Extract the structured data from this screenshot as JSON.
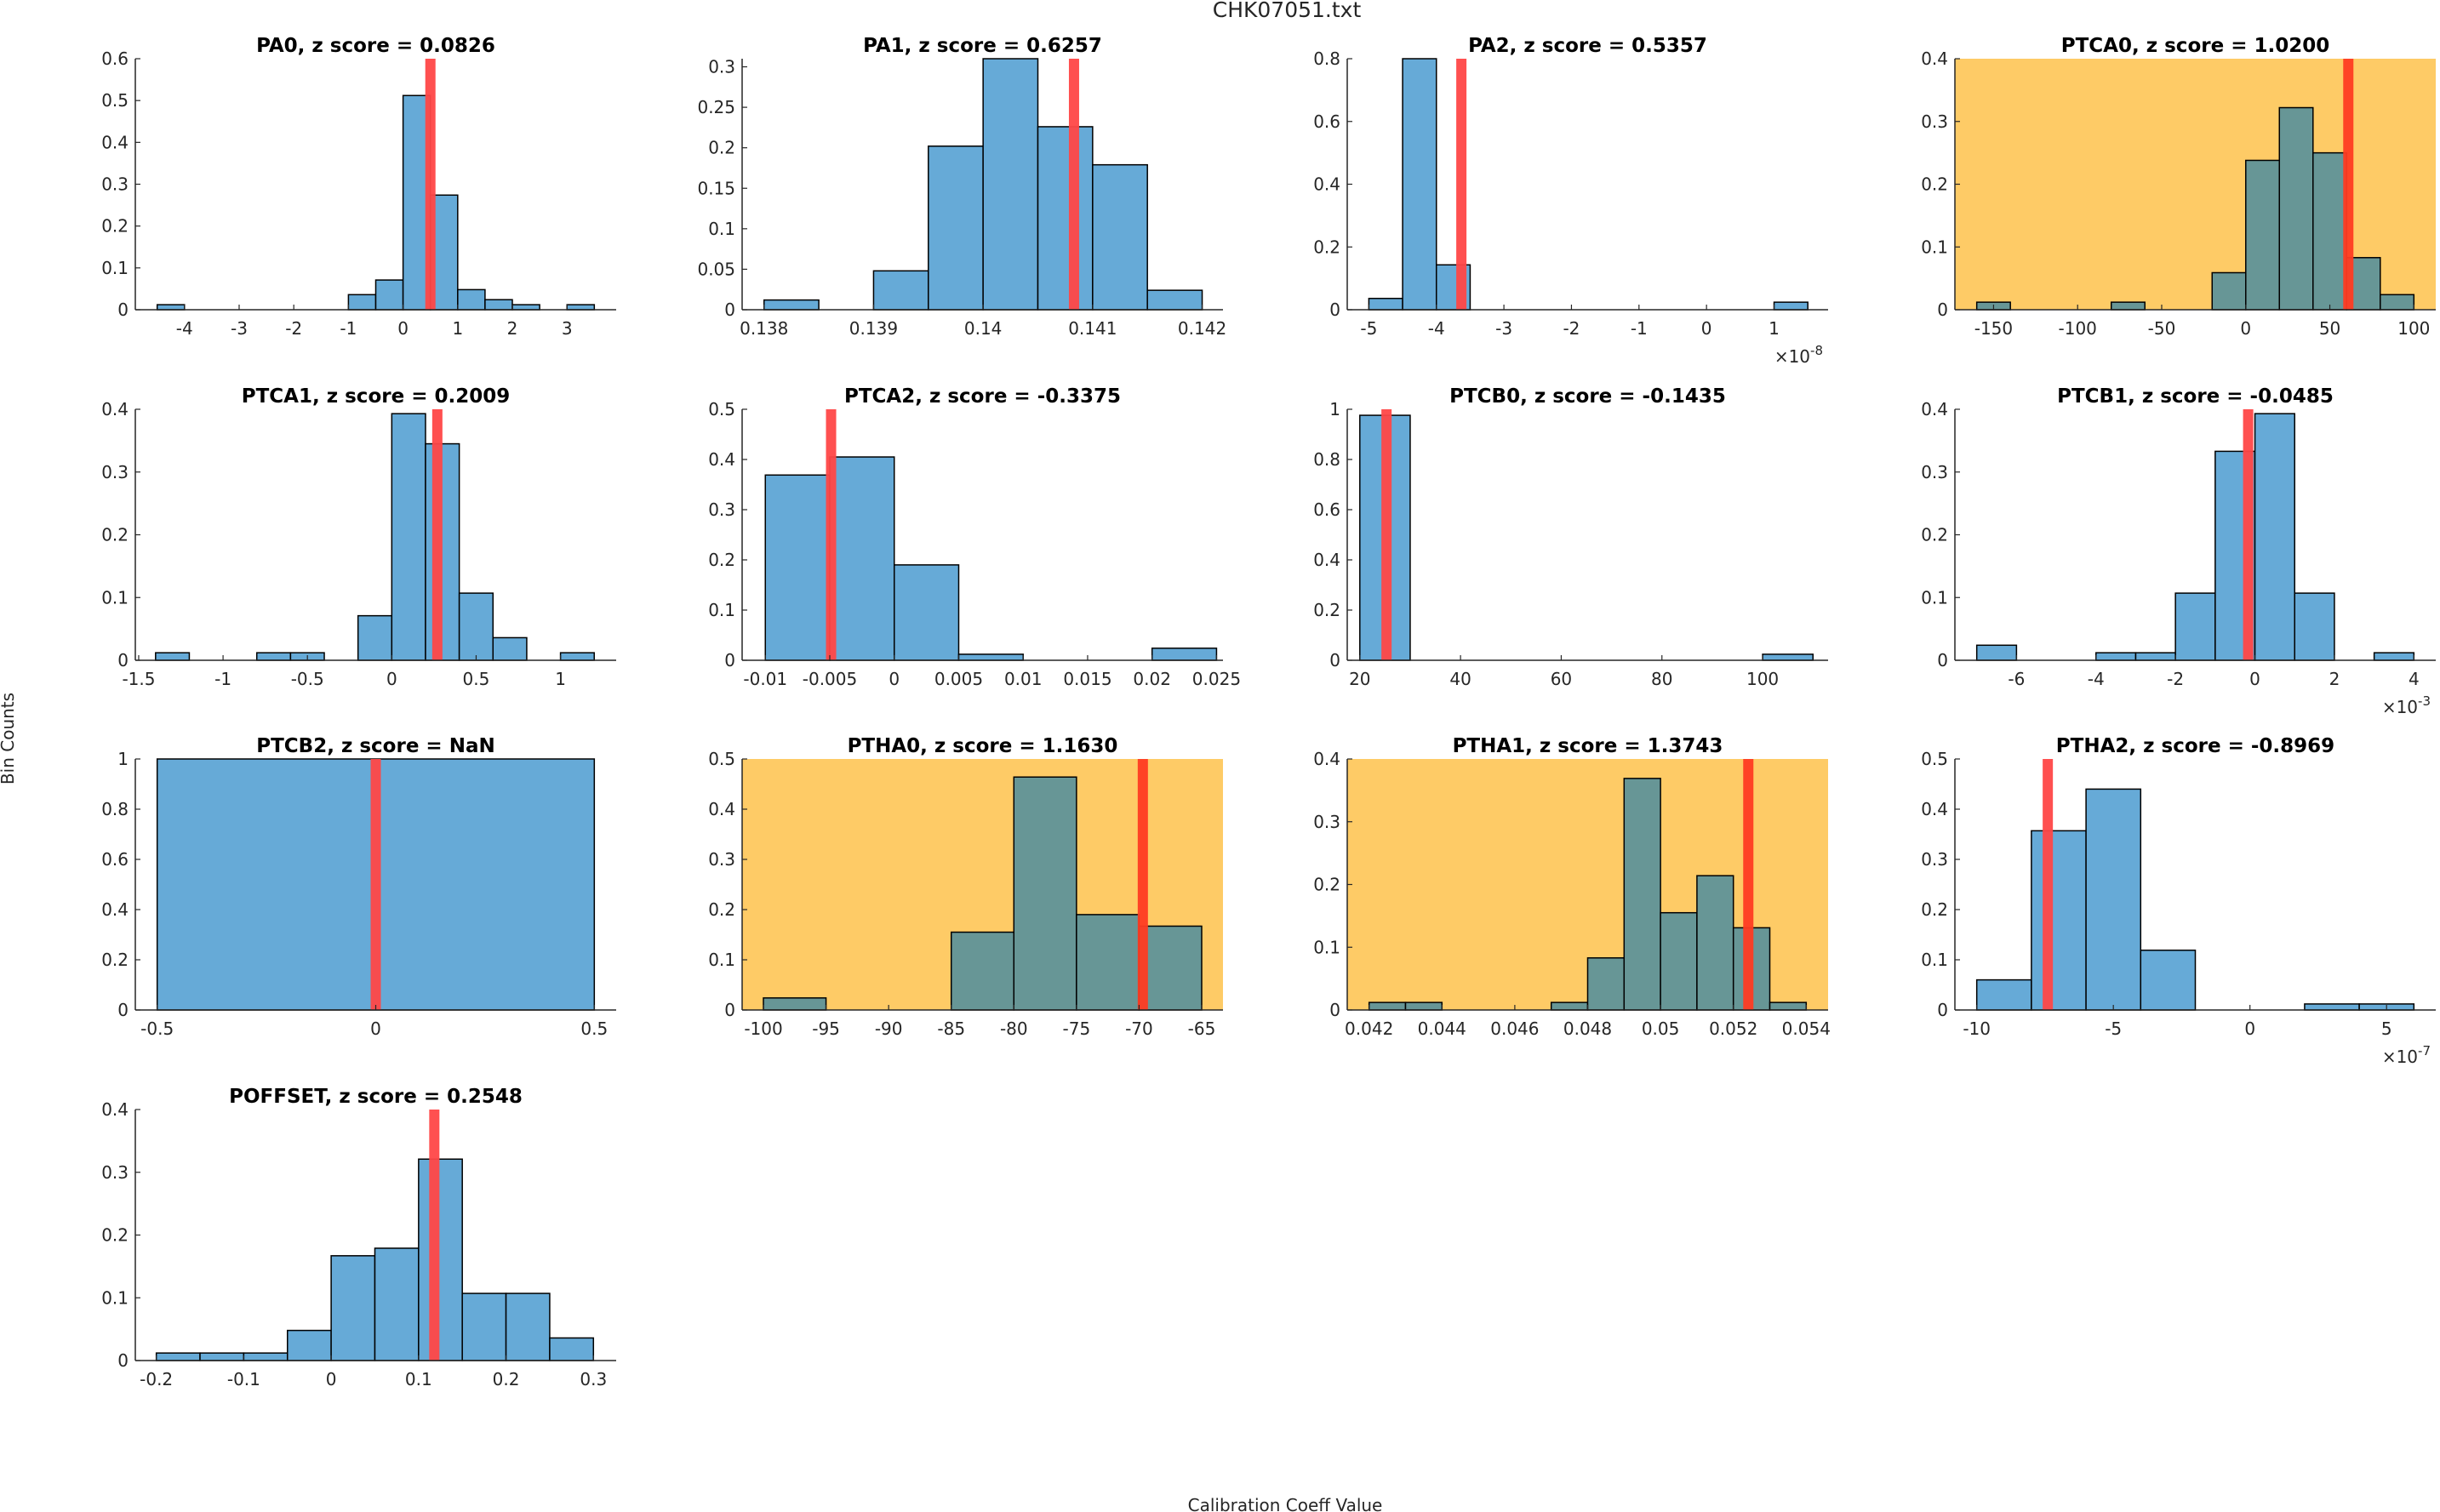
{
  "figure": {
    "title": "CHK07051.txt",
    "xlabel": "Calibration Coeff Value",
    "ylabel": "Bin Counts"
  },
  "colors": {
    "bar": "#66AAD7",
    "bar_on_highlight": "#679696",
    "highlight_bg": "#FECB66",
    "marker_line": "#FF4747",
    "marker_line_on_highlight": "#FF3B22",
    "axis": "#262626"
  },
  "chart_data": [
    {
      "type": "bar",
      "name": "PA0",
      "title": "PA0, z score = 0.0826",
      "z_score": "0.0826",
      "highlight": false,
      "bin_edges": [
        -4.5,
        -4,
        -3.5,
        -3,
        -2.5,
        -2,
        -1.5,
        -1,
        -0.5,
        0,
        0.5,
        1,
        1.5,
        2,
        2.5,
        3,
        3.5
      ],
      "values": [
        0.012,
        0,
        0,
        0,
        0,
        0,
        0,
        0.036,
        0.071,
        0.512,
        0.274,
        0.048,
        0.024,
        0.012,
        0,
        0.012
      ],
      "marker_x": 0.5,
      "xlim": [
        -4.9,
        3.9
      ],
      "ylim": [
        0,
        0.6
      ],
      "xticks": [
        -4,
        -3,
        -2,
        -1,
        0,
        1,
        2,
        3
      ],
      "xtick_labels": [
        "-4",
        "-3",
        "-2",
        "-1",
        "0",
        "1",
        "2",
        "3"
      ],
      "yticks": [
        0,
        0.1,
        0.2,
        0.3,
        0.4,
        0.5,
        0.6
      ],
      "ytick_labels": [
        "0",
        "0.1",
        "0.2",
        "0.3",
        "0.4",
        "0.5",
        "0.6"
      ],
      "x_exponent": ""
    },
    {
      "type": "bar",
      "name": "PA1",
      "title": "PA1, z score = 0.6257",
      "z_score": "0.6257",
      "highlight": false,
      "bin_edges": [
        0.138,
        0.1385,
        0.139,
        0.1395,
        0.14,
        0.1405,
        0.141,
        0.1415,
        0.142
      ],
      "values": [
        0.012,
        0,
        0.048,
        0.202,
        0.31,
        0.226,
        0.179,
        0.024
      ],
      "marker_x": 0.14083,
      "xlim": [
        0.1378,
        0.14219
      ],
      "ylim": [
        0,
        0.31
      ],
      "xticks": [
        0.138,
        0.139,
        0.14,
        0.141,
        0.142
      ],
      "xtick_labels": [
        "0.138",
        "0.139",
        "0.14",
        "0.141",
        "0.142"
      ],
      "yticks": [
        0,
        0.05,
        0.1,
        0.15,
        0.2,
        0.25,
        0.3
      ],
      "ytick_labels": [
        "0",
        "0.05",
        "0.1",
        "0.15",
        "0.2",
        "0.25",
        "0.3"
      ],
      "x_exponent": ""
    },
    {
      "type": "bar",
      "name": "PA2",
      "title": "PA2, z score = 0.5357",
      "z_score": "0.5357",
      "highlight": false,
      "bin_edges": [
        -5,
        -4.5,
        -4,
        -3.5,
        -3,
        -2.5,
        -2,
        -1.5,
        -1,
        -0.5,
        0,
        0.5,
        1,
        1.5
      ],
      "values": [
        0.036,
        0.8,
        0.143,
        0,
        0,
        0,
        0,
        0,
        0,
        0,
        0,
        0,
        0.024
      ],
      "marker_x": -3.63,
      "xlim": [
        -5.32,
        1.8
      ],
      "ylim": [
        0,
        0.8
      ],
      "xticks": [
        -5,
        -4,
        -3,
        -2,
        -1,
        0,
        1
      ],
      "xtick_labels": [
        "-5",
        "-4",
        "-3",
        "-2",
        "-1",
        "0",
        "1"
      ],
      "yticks": [
        0,
        0.2,
        0.4,
        0.6,
        0.8
      ],
      "ytick_labels": [
        "0",
        "0.2",
        "0.4",
        "0.6",
        "0.8"
      ],
      "x_exponent": "-8"
    },
    {
      "type": "bar",
      "name": "PTCA0",
      "title": "PTCA0, z score = 1.0200",
      "z_score": "1.0200",
      "highlight": true,
      "bin_edges": [
        -160,
        -140,
        -120,
        -100,
        -80,
        -60,
        -40,
        -20,
        0,
        20,
        40,
        60,
        80,
        100
      ],
      "values": [
        0.012,
        0,
        0,
        0,
        0.012,
        0,
        0,
        0.059,
        0.238,
        0.322,
        0.25,
        0.083,
        0.024
      ],
      "marker_x": 61,
      "xlim": [
        -173,
        113
      ],
      "ylim": [
        0,
        0.4
      ],
      "xticks": [
        -150,
        -100,
        -50,
        0,
        50,
        100
      ],
      "xtick_labels": [
        "-150",
        "-100",
        "-50",
        "0",
        "50",
        "100"
      ],
      "yticks": [
        0,
        0.1,
        0.2,
        0.3,
        0.4
      ],
      "ytick_labels": [
        "0",
        "0.1",
        "0.2",
        "0.3",
        "0.4"
      ],
      "x_exponent": ""
    },
    {
      "type": "bar",
      "name": "PTCA1",
      "title": "PTCA1, z score = 0.2009",
      "z_score": "0.2009",
      "highlight": false,
      "bin_edges": [
        -1.4,
        -1.2,
        -1,
        -0.8,
        -0.6,
        -0.4,
        -0.2,
        0,
        0.2,
        0.4,
        0.6,
        0.8,
        1,
        1.2
      ],
      "values": [
        0.012,
        0,
        0,
        0.012,
        0.012,
        0,
        0.071,
        0.393,
        0.345,
        0.107,
        0.036,
        0,
        0.012
      ],
      "marker_x": 0.27,
      "xlim": [
        -1.52,
        1.33
      ],
      "ylim": [
        0,
        0.4
      ],
      "xticks": [
        -1.5,
        -1,
        -0.5,
        0,
        0.5,
        1
      ],
      "xtick_labels": [
        "-1.5",
        "-1",
        "-0.5",
        "0",
        "0.5",
        "1"
      ],
      "yticks": [
        0,
        0.1,
        0.2,
        0.3,
        0.4
      ],
      "ytick_labels": [
        "0",
        "0.1",
        "0.2",
        "0.3",
        "0.4"
      ],
      "x_exponent": ""
    },
    {
      "type": "bar",
      "name": "PTCA2",
      "title": "PTCA2, z score = -0.3375",
      "z_score": "-0.3375",
      "highlight": false,
      "bin_edges": [
        -0.01,
        -0.005,
        0,
        0.005,
        0.01,
        0.015,
        0.02,
        0.025
      ],
      "values": [
        0.369,
        0.405,
        0.19,
        0.012,
        0,
        0,
        0.024
      ],
      "marker_x": -0.0049,
      "xlim": [
        -0.0118,
        0.0255
      ],
      "ylim": [
        0,
        0.5
      ],
      "xticks": [
        -0.01,
        -0.005,
        0,
        0.005,
        0.01,
        0.015,
        0.02,
        0.025
      ],
      "xtick_labels": [
        "-0.01",
        "-0.005",
        "0",
        "0.005",
        "0.01",
        "0.015",
        "0.02",
        "0.025"
      ],
      "yticks": [
        0,
        0.1,
        0.2,
        0.3,
        0.4,
        0.5
      ],
      "ytick_labels": [
        "0",
        "0.1",
        "0.2",
        "0.3",
        "0.4",
        "0.5"
      ],
      "x_exponent": ""
    },
    {
      "type": "bar",
      "name": "PTCB0",
      "title": "PTCB0, z score = -0.1435",
      "z_score": "-0.1435",
      "highlight": false,
      "bin_edges": [
        20,
        30,
        40,
        50,
        60,
        70,
        80,
        90,
        100,
        110
      ],
      "values": [
        0.976,
        0,
        0,
        0,
        0,
        0,
        0,
        0,
        0.024
      ],
      "marker_x": 25.3,
      "xlim": [
        17.5,
        113
      ],
      "ylim": [
        0,
        1
      ],
      "xticks": [
        20,
        40,
        60,
        80,
        100
      ],
      "xtick_labels": [
        "20",
        "40",
        "60",
        "80",
        "100"
      ],
      "yticks": [
        0,
        0.2,
        0.4,
        0.6,
        0.8,
        1
      ],
      "ytick_labels": [
        "0",
        "0.2",
        "0.4",
        "0.6",
        "0.8",
        "1"
      ],
      "x_exponent": ""
    },
    {
      "type": "bar",
      "name": "PTCB1",
      "title": "PTCB1, z score = -0.0485",
      "z_score": "-0.0485",
      "highlight": false,
      "bin_edges": [
        -7,
        -6,
        -5,
        -4,
        -3,
        -2,
        -1,
        0,
        1,
        2,
        3,
        4
      ],
      "values": [
        0.024,
        0,
        0,
        0.012,
        0.012,
        0.107,
        0.333,
        0.393,
        0.107,
        0,
        0.012
      ],
      "marker_x": -0.17,
      "xlim": [
        -7.55,
        4.55
      ],
      "ylim": [
        0,
        0.4
      ],
      "xticks": [
        -6,
        -4,
        -2,
        0,
        2,
        4
      ],
      "xtick_labels": [
        "-6",
        "-4",
        "-2",
        "0",
        "2",
        "4"
      ],
      "yticks": [
        0,
        0.1,
        0.2,
        0.3,
        0.4
      ],
      "ytick_labels": [
        "0",
        "0.1",
        "0.2",
        "0.3",
        "0.4"
      ],
      "x_exponent": "-3"
    },
    {
      "type": "bar",
      "name": "PTCB2",
      "title": "PTCB2, z score = NaN",
      "z_score": "NaN",
      "highlight": false,
      "bin_edges": [
        -0.5,
        0.5
      ],
      "values": [
        1
      ],
      "marker_x": 0,
      "xlim": [
        -0.55,
        0.55
      ],
      "ylim": [
        0,
        1
      ],
      "xticks": [
        -0.5,
        0,
        0.5
      ],
      "xtick_labels": [
        "-0.5",
        "0",
        "0.5"
      ],
      "yticks": [
        0,
        0.2,
        0.4,
        0.6,
        0.8,
        1
      ],
      "ytick_labels": [
        "0",
        "0.2",
        "0.4",
        "0.6",
        "0.8",
        "1"
      ],
      "x_exponent": ""
    },
    {
      "type": "bar",
      "name": "PTHA0",
      "title": "PTHA0, z score = 1.1630",
      "z_score": "1.1630",
      "highlight": true,
      "bin_edges": [
        -100,
        -95,
        -90,
        -85,
        -80,
        -75,
        -70,
        -65
      ],
      "values": [
        0.024,
        0,
        0,
        0.155,
        0.464,
        0.19,
        0.167
      ],
      "marker_x": -69.7,
      "xlim": [
        -101.7,
        -63.3
      ],
      "ylim": [
        0,
        0.5
      ],
      "xticks": [
        -100,
        -95,
        -90,
        -85,
        -80,
        -75,
        -70,
        -65
      ],
      "xtick_labels": [
        "-100",
        "-95",
        "-90",
        "-85",
        "-80",
        "-75",
        "-70",
        "-65"
      ],
      "yticks": [
        0,
        0.1,
        0.2,
        0.3,
        0.4,
        0.5
      ],
      "ytick_labels": [
        "0",
        "0.1",
        "0.2",
        "0.3",
        "0.4",
        "0.5"
      ],
      "x_exponent": ""
    },
    {
      "type": "bar",
      "name": "PTHA1",
      "title": "PTHA1, z score = 1.3743",
      "z_score": "1.3743",
      "highlight": true,
      "bin_edges": [
        0.042,
        0.043,
        0.044,
        0.045,
        0.046,
        0.047,
        0.048,
        0.049,
        0.05,
        0.051,
        0.052,
        0.053,
        0.054
      ],
      "values": [
        0.012,
        0.012,
        0,
        0,
        0,
        0.012,
        0.083,
        0.369,
        0.155,
        0.214,
        0.131,
        0.012
      ],
      "marker_x": 0.05241,
      "xlim": [
        0.0414,
        0.0546
      ],
      "ylim": [
        0,
        0.4
      ],
      "xticks": [
        0.042,
        0.044,
        0.046,
        0.048,
        0.05,
        0.052,
        0.054
      ],
      "xtick_labels": [
        "0.042",
        "0.044",
        "0.046",
        "0.048",
        "0.05",
        "0.052",
        "0.054"
      ],
      "yticks": [
        0,
        0.1,
        0.2,
        0.3,
        0.4
      ],
      "ytick_labels": [
        "0",
        "0.1",
        "0.2",
        "0.3",
        "0.4"
      ],
      "x_exponent": ""
    },
    {
      "type": "bar",
      "name": "PTHA2",
      "title": "PTHA2, z score = -0.8969",
      "z_score": "-0.8969",
      "highlight": false,
      "bin_edges": [
        -10,
        -8,
        -6,
        -4,
        -2,
        0,
        2,
        4,
        6
      ],
      "values": [
        0.06,
        0.357,
        0.44,
        0.119,
        0,
        0,
        0.012,
        0.012
      ],
      "marker_x": -7.4,
      "xlim": [
        -10.8,
        6.8
      ],
      "ylim": [
        0,
        0.5
      ],
      "xticks": [
        -10,
        -5,
        0,
        5
      ],
      "xtick_labels": [
        "-10",
        "-5",
        "0",
        "5"
      ],
      "yticks": [
        0,
        0.1,
        0.2,
        0.3,
        0.4,
        0.5
      ],
      "ytick_labels": [
        "0",
        "0.1",
        "0.2",
        "0.3",
        "0.4",
        "0.5"
      ],
      "x_exponent": "-7"
    },
    {
      "type": "bar",
      "name": "POFFSET",
      "title": "POFFSET, z score = 0.2548",
      "z_score": "0.2548",
      "highlight": false,
      "bin_edges": [
        -0.2,
        -0.15,
        -0.1,
        -0.05,
        0,
        0.05,
        0.1,
        0.15,
        0.2,
        0.25,
        0.3
      ],
      "values": [
        0.012,
        0.012,
        0.012,
        0.048,
        0.167,
        0.179,
        0.321,
        0.107,
        0.107,
        0.036
      ],
      "marker_x": 0.118,
      "xlim": [
        -0.224,
        0.326
      ],
      "ylim": [
        0,
        0.4
      ],
      "xticks": [
        -0.2,
        -0.1,
        0,
        0.1,
        0.2,
        0.3
      ],
      "xtick_labels": [
        "-0.2",
        "-0.1",
        "0",
        "0.1",
        "0.2",
        "0.3"
      ],
      "yticks": [
        0,
        0.1,
        0.2,
        0.3,
        0.4
      ],
      "ytick_labels": [
        "0",
        "0.1",
        "0.2",
        "0.3",
        "0.4"
      ],
      "x_exponent": ""
    }
  ]
}
